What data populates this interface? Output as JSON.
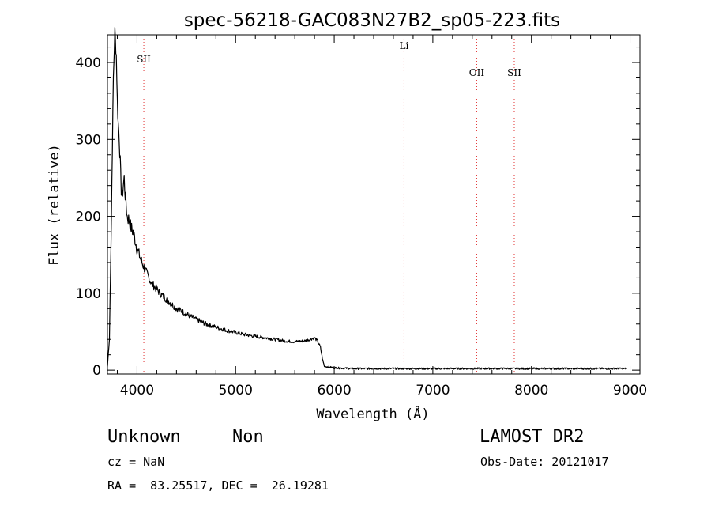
{
  "chart_data": {
    "type": "line",
    "title": "spec-56218-GAC083N27B2_sp05-223.fits",
    "xlabel": "Wavelength (Å)",
    "ylabel": "Flux (relative)",
    "xlim": [
      3700,
      9100
    ],
    "ylim": [
      -5,
      436
    ],
    "xticks": [
      4000,
      5000,
      6000,
      7000,
      8000,
      9000
    ],
    "yticks": [
      0,
      100,
      200,
      300,
      400
    ],
    "grid": false,
    "series": [
      {
        "x": [
          3700,
          3720,
          3740,
          3760,
          3775,
          3790,
          3800,
          3810,
          3820,
          3830,
          3840,
          3850,
          3860,
          3870,
          3880,
          3890,
          3900,
          3920,
          3940,
          3960,
          3980,
          4000,
          4050,
          4100,
          4150,
          4200,
          4250,
          4300,
          4350,
          4400,
          4450,
          4500,
          4600,
          4700,
          4800,
          4900,
          5000,
          5100,
          5200,
          5300,
          5400,
          5500,
          5600,
          5700,
          5750,
          5800,
          5830,
          5860,
          5880,
          5900,
          5950,
          6000,
          6200,
          6500,
          7000,
          7500,
          8000,
          8500,
          8970
        ],
        "y": [
          5,
          40,
          200,
          380,
          440,
          410,
          350,
          320,
          300,
          270,
          235,
          225,
          240,
          250,
          228,
          215,
          200,
          195,
          185,
          180,
          170,
          158,
          140,
          125,
          113,
          105,
          98,
          92,
          86,
          80,
          77,
          73,
          66,
          60,
          56,
          52,
          49,
          46,
          44,
          42,
          40,
          38,
          37,
          38,
          40,
          42,
          38,
          30,
          15,
          5,
          4,
          3,
          2,
          2,
          2,
          2,
          2,
          2,
          2
        ]
      }
    ],
    "lines": [
      {
        "label": "SII",
        "x": 4069
      },
      {
        "label": "Li",
        "x": 6708
      },
      {
        "label": "OII",
        "x": 7445
      },
      {
        "label": "SII",
        "x": 7826
      }
    ]
  },
  "info": {
    "class_label": "Unknown",
    "subclass_label": "Non",
    "cz_text": "cz = NaN",
    "coords_text": "RA =  83.25517, DEC =  26.19281",
    "survey_label": "LAMOST DR2",
    "obs_date_text": "Obs-Date: 20121017"
  }
}
